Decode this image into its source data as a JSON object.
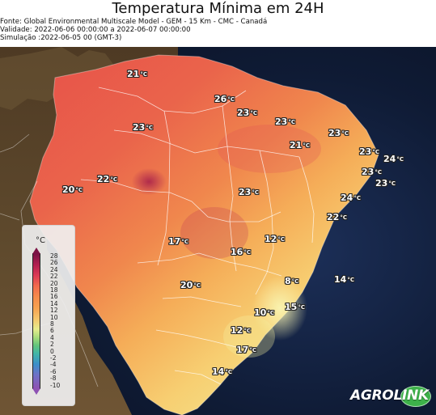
{
  "header": {
    "title": "Temperatura Mínima em 24H",
    "source": "Fonte: Global Environmental Multiscale Model - GEM - 15 Km - CMC - Canadá",
    "validity": "Validade: 2022-06-06 00:00:00 a 2022-06-07 00:00:00",
    "simulation": "Simulação :2022-06-05 00 (GMT-3)"
  },
  "legend": {
    "title": "°C",
    "ticks": [
      "28",
      "26",
      "24",
      "22",
      "20",
      "18",
      "16",
      "14",
      "12",
      "10",
      "8",
      "6",
      "4",
      "2",
      "0",
      "-2",
      "-4",
      "-6",
      "-8",
      "-10"
    ]
  },
  "map_labels": [
    {
      "value": "21",
      "unit": "°C"
    },
    {
      "value": "26",
      "unit": "°C"
    },
    {
      "value": "23",
      "unit": "°C"
    },
    {
      "value": "23",
      "unit": "°C"
    },
    {
      "value": "23",
      "unit": "°C"
    },
    {
      "value": "23",
      "unit": "°C"
    },
    {
      "value": "21",
      "unit": "°C"
    },
    {
      "value": "23",
      "unit": "°C"
    },
    {
      "value": "24",
      "unit": "°C"
    },
    {
      "value": "22",
      "unit": "°C"
    },
    {
      "value": "23",
      "unit": "°C"
    },
    {
      "value": "20",
      "unit": "°C"
    },
    {
      "value": "23",
      "unit": "°C"
    },
    {
      "value": "24",
      "unit": "°C"
    },
    {
      "value": "23",
      "unit": "°C"
    },
    {
      "value": "22",
      "unit": "°C"
    },
    {
      "value": "17",
      "unit": "°C"
    },
    {
      "value": "12",
      "unit": "°C"
    },
    {
      "value": "16",
      "unit": "°C"
    },
    {
      "value": "20",
      "unit": "°C"
    },
    {
      "value": "8",
      "unit": "°C"
    },
    {
      "value": "14",
      "unit": "°C"
    },
    {
      "value": "10",
      "unit": "°C"
    },
    {
      "value": "15",
      "unit": "°C"
    },
    {
      "value": "12",
      "unit": "°C"
    },
    {
      "value": "17",
      "unit": "°C"
    },
    {
      "value": "14",
      "unit": "°C"
    }
  ],
  "logo": {
    "brand": "AGROLINK"
  },
  "colors": {
    "legend_top": "#7b1245",
    "legend_bottom": "#8e52b3",
    "map_hot": "#e5584d",
    "map_cool": "#f1e58d",
    "ocean": "#111827",
    "logo_green": "#3db14a"
  }
}
